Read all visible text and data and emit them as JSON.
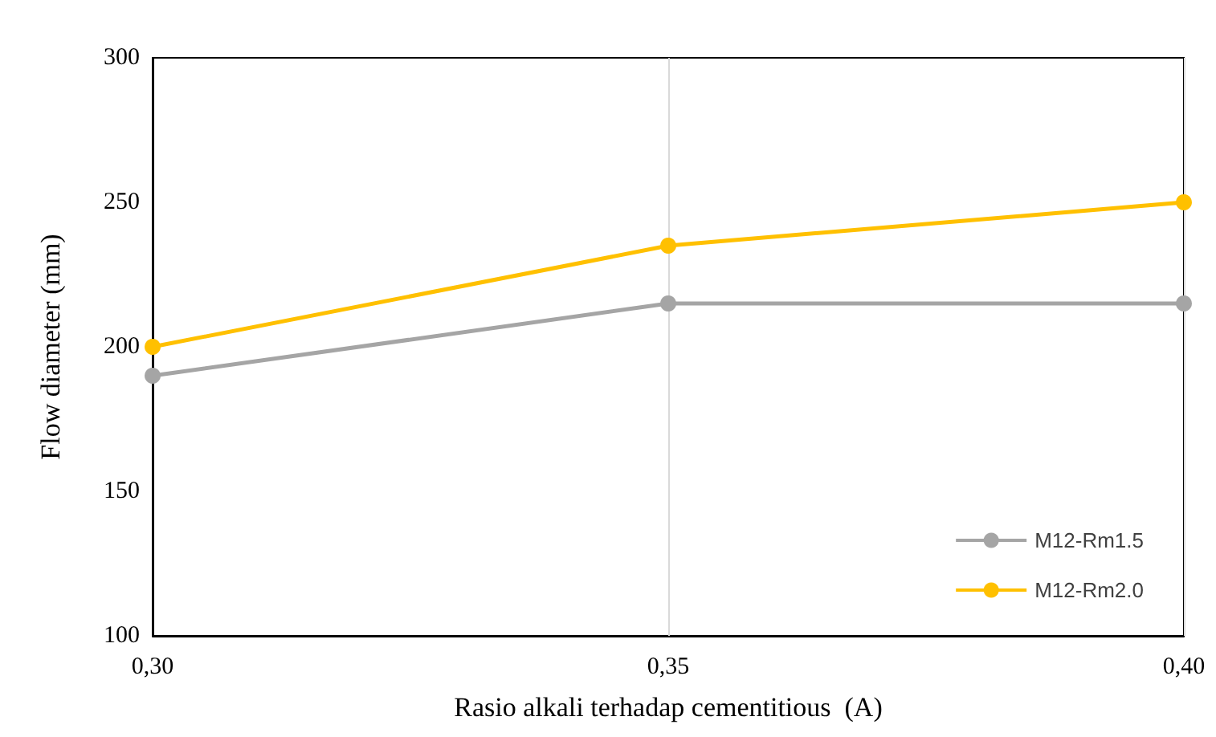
{
  "chart_data": {
    "type": "line",
    "xlabel": "Rasio alkali terhadap cementitious  (A)",
    "ylabel": "Flow diameter (mm)",
    "categories": [
      "0,30",
      "0,35",
      "0,40"
    ],
    "series": [
      {
        "name": "M12-Rm1.5",
        "color": "#a5a5a5",
        "values": [
          190,
          215,
          215
        ]
      },
      {
        "name": "M12-Rm2.0",
        "color": "#ffc000",
        "values": [
          200,
          235,
          250
        ]
      }
    ],
    "ylim": [
      100,
      300
    ],
    "yticks": [
      100,
      150,
      200,
      250,
      300
    ],
    "grid": "x",
    "legend": "bottom right",
    "marker": "circle",
    "line_style": "solid"
  }
}
